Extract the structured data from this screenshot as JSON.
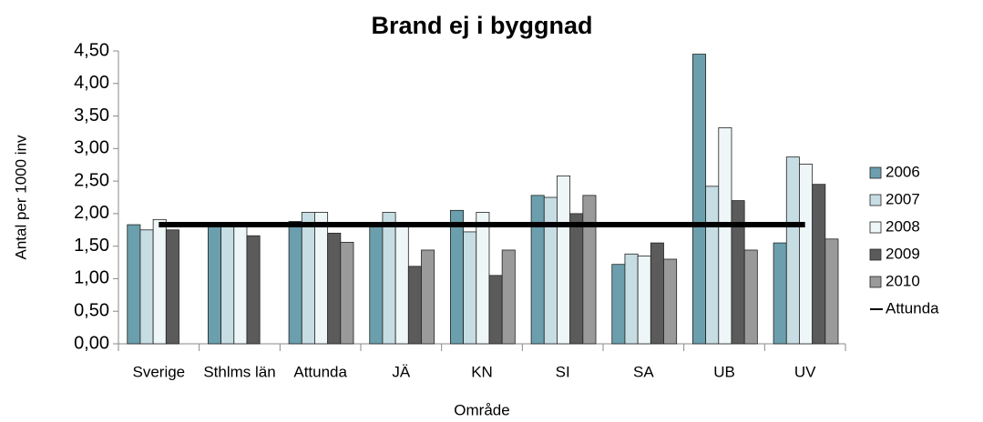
{
  "chart_data": {
    "type": "bar",
    "title": "Brand ej i byggnad",
    "x_label": "Område",
    "y_label": "Antal per 1000 inv",
    "categories": [
      "Sverige",
      "Sthlms län",
      "Attunda",
      "JÄ",
      "KN",
      "SI",
      "SA",
      "UB",
      "UV"
    ],
    "series": [
      {
        "name": "2006",
        "color": "#6b9fad",
        "values": [
          1.83,
          1.85,
          1.88,
          1.85,
          2.05,
          2.28,
          1.22,
          4.45,
          1.55
        ]
      },
      {
        "name": "2007",
        "color": "#c6dde3",
        "values": [
          1.75,
          1.85,
          2.02,
          2.02,
          1.72,
          2.25,
          1.38,
          2.42,
          2.87
        ]
      },
      {
        "name": "2008",
        "color": "#eef6f8",
        "values": [
          1.91,
          1.85,
          2.02,
          1.8,
          2.02,
          2.58,
          1.35,
          3.32,
          2.76
        ]
      },
      {
        "name": "2009",
        "color": "#5b5b5b",
        "values": [
          1.75,
          1.66,
          1.7,
          1.19,
          1.05,
          2.0,
          1.55,
          2.2,
          2.45
        ]
      },
      {
        "name": "2010",
        "color": "#9a9a9a",
        "values": [
          null,
          null,
          1.56,
          1.44,
          1.44,
          2.28,
          1.3,
          1.44,
          1.61
        ]
      },
      {
        "name": "Attunda",
        "color": "#000000",
        "type": "line",
        "values": [
          1.83,
          1.83,
          1.83,
          1.83,
          1.83,
          1.83,
          1.83,
          1.83,
          1.83
        ]
      }
    ],
    "ylim": [
      0,
      4.5
    ],
    "yticks": [
      {
        "value": 0,
        "label": "0,00"
      },
      {
        "value": 0.5,
        "label": "0,50"
      },
      {
        "value": 1,
        "label": "1,00"
      },
      {
        "value": 1.5,
        "label": "1,50"
      },
      {
        "value": 2,
        "label": "2,00"
      },
      {
        "value": 2.5,
        "label": "2,50"
      },
      {
        "value": 3,
        "label": "3,00"
      },
      {
        "value": 3.5,
        "label": "3,50"
      },
      {
        "value": 4,
        "label": "4,00"
      },
      {
        "value": 4.5,
        "label": "4,50"
      }
    ],
    "grid": false,
    "legend": "right"
  }
}
